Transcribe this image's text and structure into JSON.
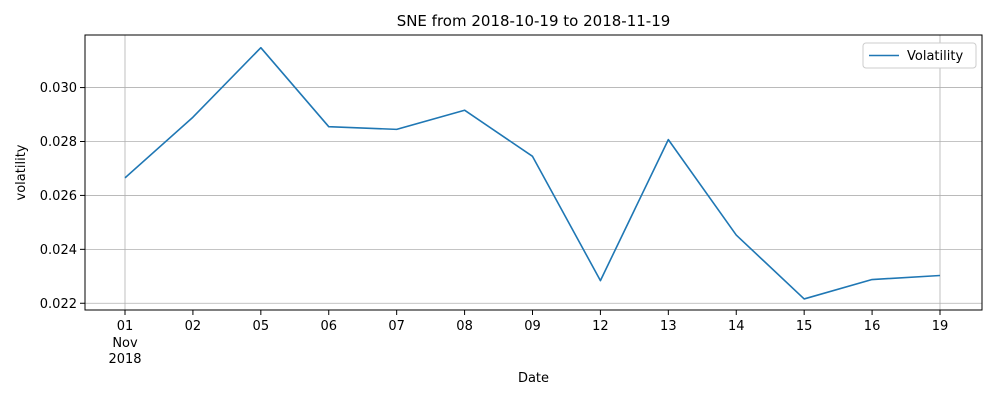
{
  "chart_data": {
    "type": "line",
    "title": "SNE from 2018-10-19 to 2018-11-19",
    "xlabel": "Date",
    "ylabel": "volatility",
    "categories": [
      "01",
      "02",
      "05",
      "06",
      "07",
      "08",
      "09",
      "12",
      "13",
      "14",
      "15",
      "16",
      "19"
    ],
    "x_sublabels": [
      "Nov",
      "2018"
    ],
    "series": [
      {
        "name": "Volatility",
        "color": "#1f77b4",
        "values": [
          0.02665,
          0.0289,
          0.03148,
          0.02855,
          0.02845,
          0.02916,
          0.02745,
          0.02284,
          0.02807,
          0.02453,
          0.02216,
          0.02288,
          0.02303
        ]
      }
    ],
    "ylim": [
      0.02175,
      0.03195
    ],
    "yticks": [
      0.022,
      0.024,
      0.026,
      0.028,
      0.03
    ],
    "ytick_labels": [
      "0.022",
      "0.024",
      "0.026",
      "0.028",
      "0.030"
    ],
    "grid": true,
    "legend_position": "top-right"
  }
}
